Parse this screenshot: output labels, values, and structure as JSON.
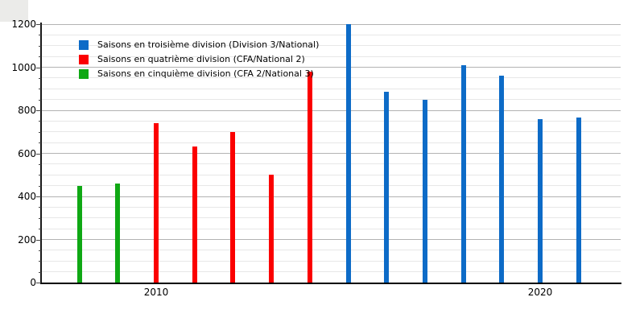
{
  "chart_data": {
    "type": "bar",
    "title": "",
    "x_unit": "year",
    "bars": [
      {
        "year": 2008,
        "value": 450,
        "series": "cinquieme"
      },
      {
        "year": 2009,
        "value": 460,
        "series": "cinquieme"
      },
      {
        "year": 2010,
        "value": 740,
        "series": "quatrieme"
      },
      {
        "year": 2011,
        "value": 630,
        "series": "quatrieme"
      },
      {
        "year": 2012,
        "value": 700,
        "series": "quatrieme"
      },
      {
        "year": 2013,
        "value": 500,
        "series": "quatrieme"
      },
      {
        "year": 2014,
        "value": 980,
        "series": "quatrieme"
      },
      {
        "year": 2015,
        "value": 1200,
        "series": "troisieme"
      },
      {
        "year": 2016,
        "value": 885,
        "series": "troisieme"
      },
      {
        "year": 2017,
        "value": 850,
        "series": "troisieme"
      },
      {
        "year": 2018,
        "value": 1010,
        "series": "troisieme"
      },
      {
        "year": 2019,
        "value": 960,
        "series": "troisieme"
      },
      {
        "year": 2020,
        "value": 760,
        "series": "troisieme"
      },
      {
        "year": 2021,
        "value": 765,
        "series": "troisieme"
      }
    ],
    "series": {
      "troisieme": {
        "label": "Saisons en troisième division (Division 3/National)",
        "color": "#0d6bc7"
      },
      "quatrieme": {
        "label": "Saisons en quatrième division (CFA/National 2)",
        "color": "#fb0000"
      },
      "cinquieme": {
        "label": "Saisons en cinquième division (CFA 2/National 3)",
        "color": "#0fa814"
      }
    },
    "legend_order": [
      "troisieme",
      "quatrieme",
      "cinquieme"
    ],
    "legend_position": "top-left-inside",
    "grid": true,
    "y_axis": {
      "min": 0,
      "max": 1200,
      "major_step": 200,
      "minor_step": 50,
      "tick_labels": [
        "0",
        "200",
        "400",
        "600",
        "800",
        "1000",
        "1200"
      ]
    },
    "x_axis": {
      "tick_labels": [
        {
          "label": "2010",
          "year": 2010
        },
        {
          "label": "2020",
          "year": 2020
        }
      ]
    },
    "colors": {
      "major_gridline": "#b3b3b3",
      "minor_gridline": "#e7e7e7",
      "axis": "#000000",
      "text": "#000000",
      "background": "#ffffff"
    }
  }
}
